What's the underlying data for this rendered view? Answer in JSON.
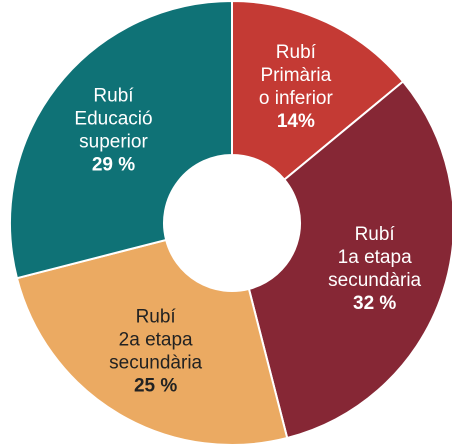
{
  "chart_data": {
    "type": "donut",
    "categories": [
      [
        "Rubí",
        "Primària",
        "o inferior"
      ],
      [
        "Rubí",
        "1a etapa",
        "secundària"
      ],
      [
        "Rubí",
        "2a etapa",
        "secundària"
      ],
      [
        "Rubí",
        "Educació",
        "superior"
      ]
    ],
    "values": [
      14,
      32,
      25,
      29
    ],
    "value_labels": [
      "14%",
      "32 %",
      "25 %",
      "29 %"
    ],
    "colors": [
      "#c43a34",
      "#862735",
      "#ebaa62",
      "#0f7276"
    ]
  }
}
